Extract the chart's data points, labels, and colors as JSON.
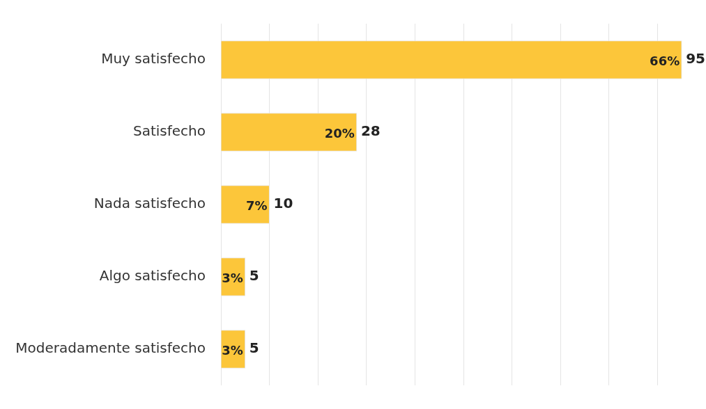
{
  "chart_data": {
    "type": "bar",
    "orientation": "horizontal",
    "categories": [
      "Muy satisfecho",
      "Satisfecho",
      "Nada satisfecho",
      "Algo satisfecho",
      "Moderadamente satisfecho"
    ],
    "values": [
      95,
      28,
      10,
      5,
      5
    ],
    "data_labels": true,
    "annotations": [
      {
        "text": "66%",
        "x": 95,
        "y": "Muy satisfecho"
      },
      {
        "text": "20%",
        "x": 28,
        "y": "Satisfecho"
      },
      {
        "text": "7%",
        "x": 10,
        "y": "Nada satisfecho"
      },
      {
        "text": "3%",
        "x": 5,
        "y": "Algo satisfecho"
      },
      {
        "text": "3%",
        "x": 5,
        "y": "Moderadamente satisfecho"
      }
    ],
    "color": "#fcc63a",
    "grid": "x",
    "tick_labels": "y"
  }
}
